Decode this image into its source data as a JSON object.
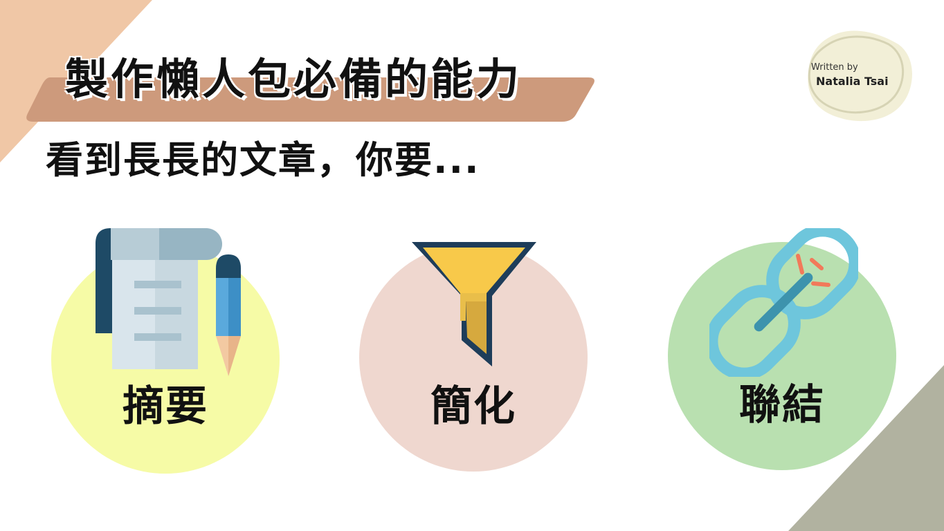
{
  "slide": {
    "title": "製作懶人包必備的能力",
    "subtitle": "看到長長的文章，你要...",
    "author": {
      "label": "Written by",
      "name": "Natalia Tsai"
    },
    "features": [
      {
        "label": "摘要",
        "icon": "document-pencil-icon",
        "circle_color": "#f6fba6"
      },
      {
        "label": "簡化",
        "icon": "funnel-icon",
        "circle_color": "#efd7cf"
      },
      {
        "label": "聯結",
        "icon": "chain-link-icon",
        "circle_color": "#b9e0b0"
      }
    ]
  },
  "colors": {
    "corner_top_left": "#f0c7a6",
    "corner_bottom_right": "#b1b2a0",
    "title_band": "#cd9a7c",
    "author_blob": "#f2efd7"
  }
}
